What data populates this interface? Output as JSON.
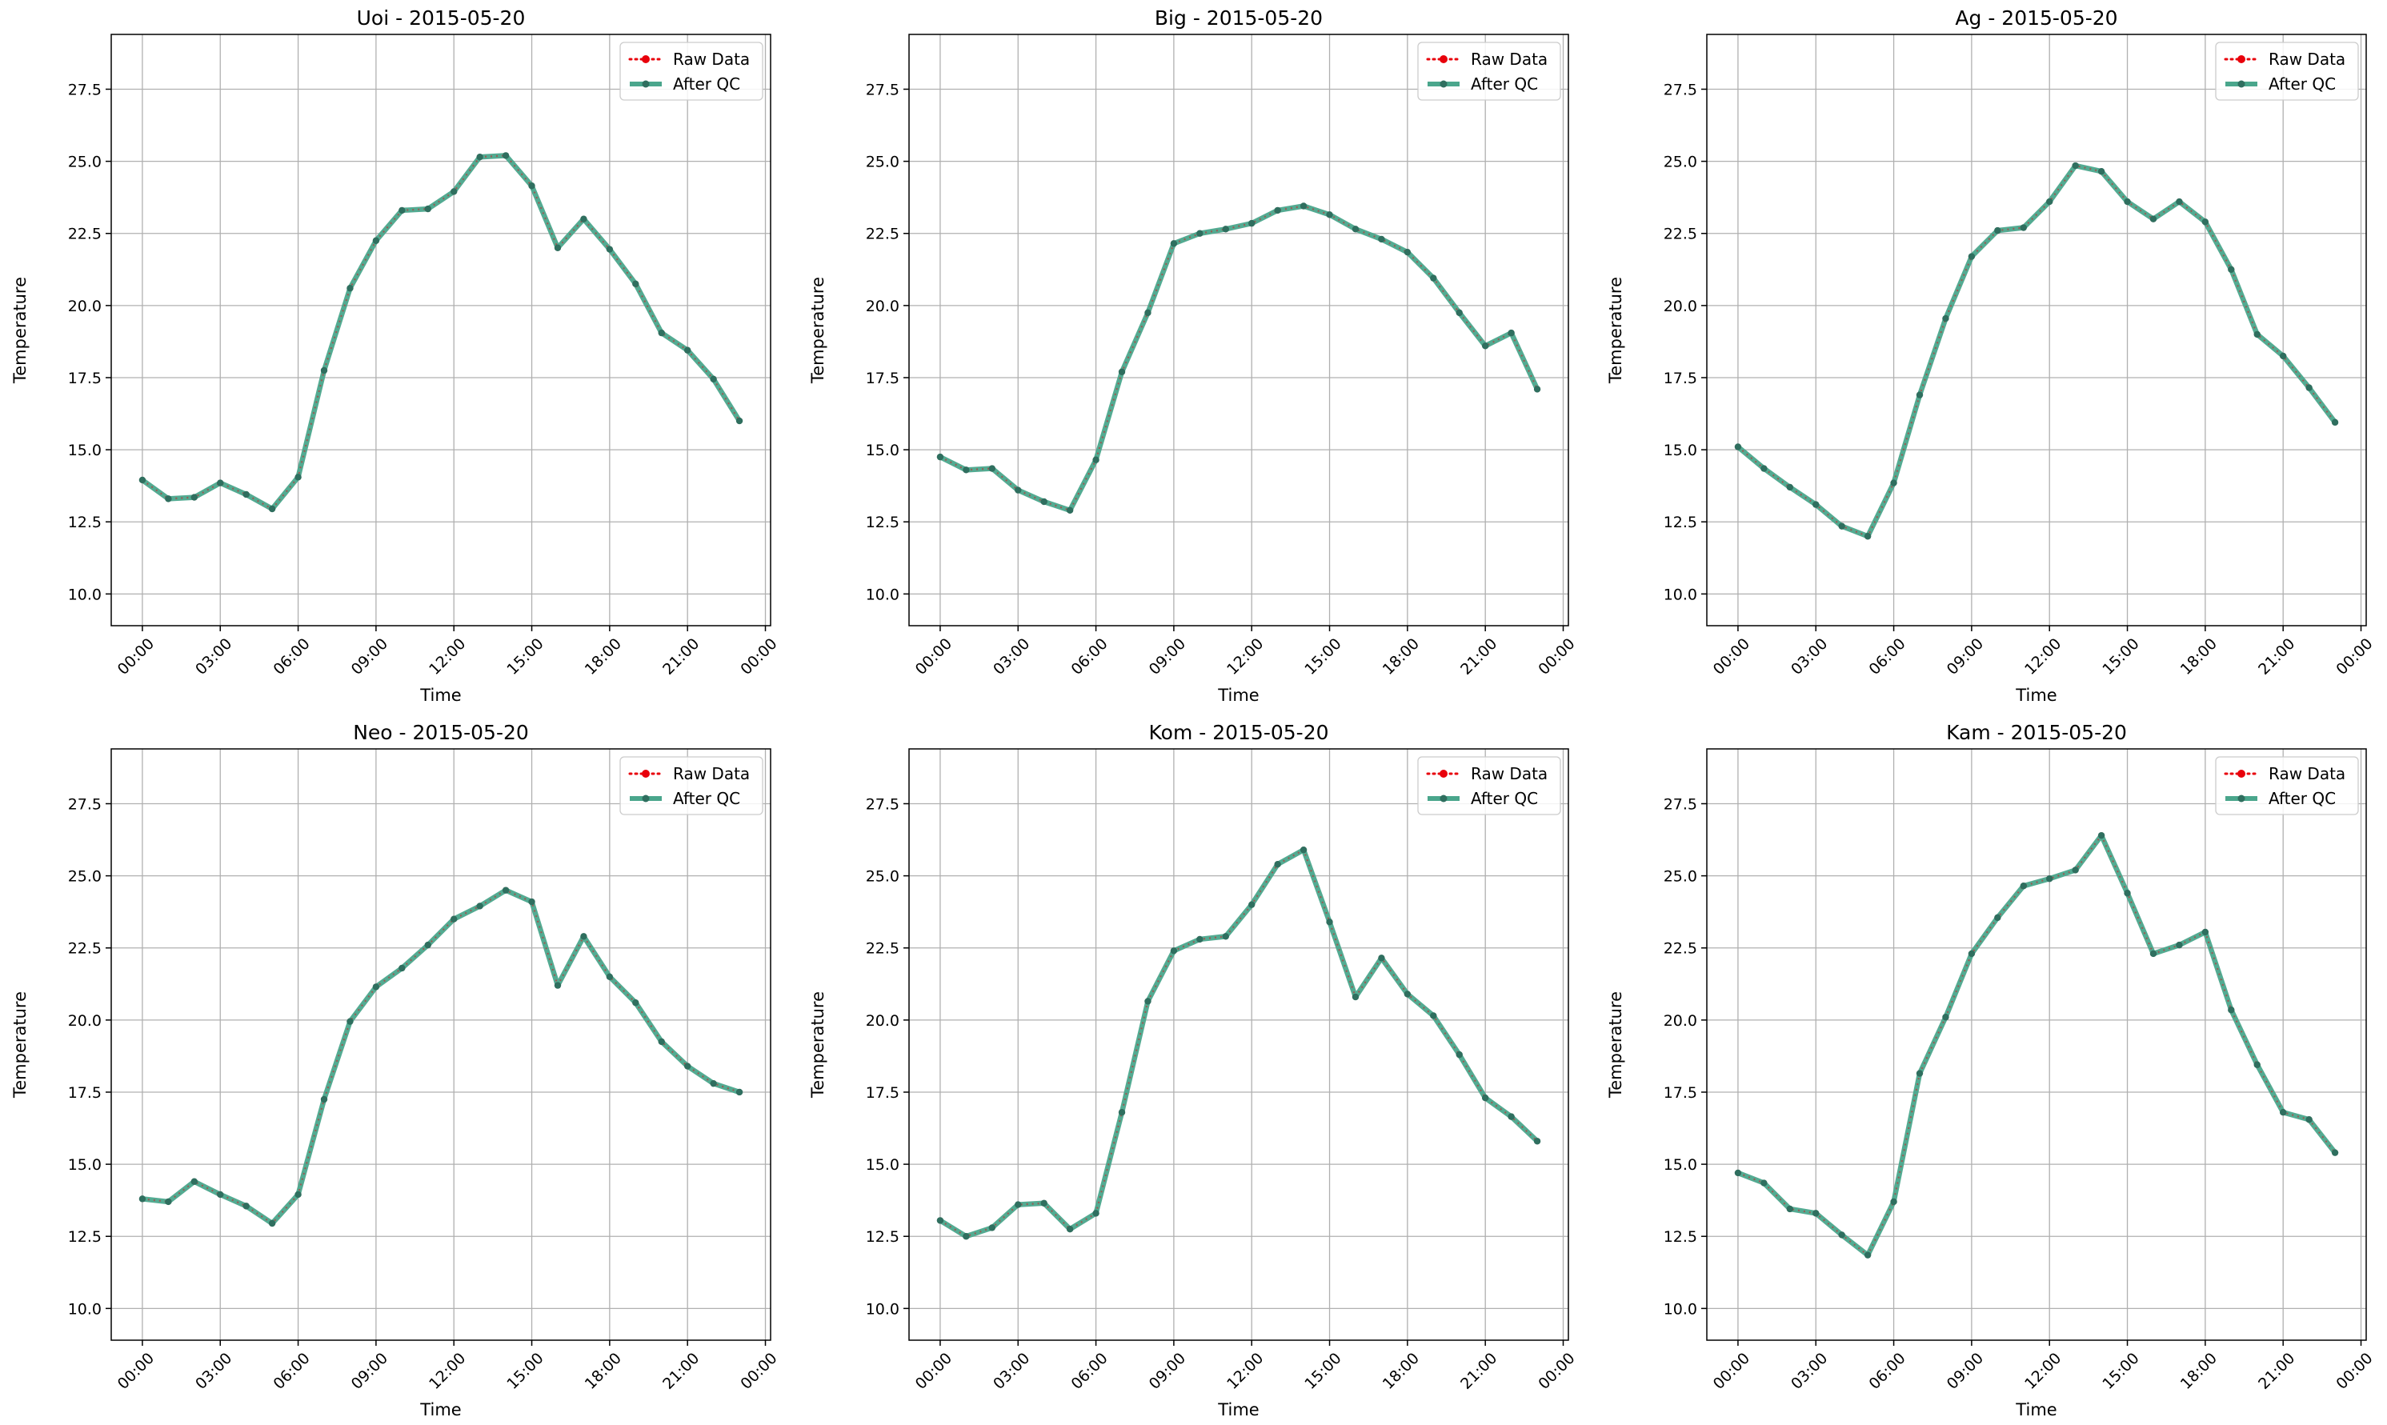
{
  "chart_data": [
    {
      "type": "line",
      "title": "Uoi - 2015-05-20",
      "xlabel": "Time",
      "ylabel": "Temperature",
      "x_ticks": [
        "00:00",
        "03:00",
        "06:00",
        "09:00",
        "12:00",
        "15:00",
        "18:00",
        "21:00",
        "00:00"
      ],
      "y_ticks": [
        "10.0",
        "12.5",
        "15.0",
        "17.5",
        "20.0",
        "22.5",
        "25.0",
        "27.5"
      ],
      "ylim": [
        8.9,
        29.4
      ],
      "xlim_hours": [
        -1.2,
        24.2
      ],
      "grid": true,
      "legend": {
        "position": "top-right",
        "entries": [
          "Raw Data",
          "After QC"
        ]
      },
      "x_hours": [
        0,
        1,
        2,
        3,
        4,
        5,
        6,
        7,
        8,
        9,
        10,
        11,
        12,
        13,
        14,
        15,
        16,
        17,
        18,
        19,
        20,
        21,
        22,
        23
      ],
      "series": [
        {
          "name": "Raw Data",
          "values": [
            13.95,
            13.3,
            13.35,
            13.85,
            13.45,
            12.95,
            14.05,
            17.75,
            20.6,
            22.25,
            23.3,
            23.35,
            23.95,
            25.15,
            25.2,
            24.15,
            22.0,
            23.0,
            21.95,
            20.75,
            19.05,
            18.45,
            17.45,
            16.0
          ]
        },
        {
          "name": "After QC",
          "values": [
            13.95,
            13.3,
            13.35,
            13.85,
            13.45,
            12.95,
            14.05,
            17.75,
            20.6,
            22.25,
            23.3,
            23.35,
            23.95,
            25.15,
            25.2,
            24.15,
            22.0,
            23.0,
            21.95,
            20.75,
            19.05,
            18.45,
            17.45,
            16.0
          ]
        }
      ]
    },
    {
      "type": "line",
      "title": "Big - 2015-05-20",
      "xlabel": "Time",
      "ylabel": "Temperature",
      "x_ticks": [
        "00:00",
        "03:00",
        "06:00",
        "09:00",
        "12:00",
        "15:00",
        "18:00",
        "21:00",
        "00:00"
      ],
      "y_ticks": [
        "10.0",
        "12.5",
        "15.0",
        "17.5",
        "20.0",
        "22.5",
        "25.0",
        "27.5"
      ],
      "ylim": [
        8.9,
        29.4
      ],
      "xlim_hours": [
        -1.2,
        24.2
      ],
      "grid": true,
      "legend": {
        "position": "top-right",
        "entries": [
          "Raw Data",
          "After QC"
        ]
      },
      "x_hours": [
        0,
        1,
        2,
        3,
        4,
        5,
        6,
        7,
        8,
        9,
        10,
        11,
        12,
        13,
        14,
        15,
        16,
        17,
        18,
        19,
        20,
        21,
        22,
        23
      ],
      "series": [
        {
          "name": "Raw Data",
          "values": [
            14.75,
            14.3,
            14.35,
            13.6,
            13.2,
            12.9,
            14.65,
            17.7,
            19.75,
            22.15,
            22.5,
            22.65,
            22.85,
            23.3,
            23.45,
            23.15,
            22.65,
            22.3,
            21.85,
            20.95,
            19.75,
            18.6,
            19.05,
            17.1
          ]
        },
        {
          "name": "After QC",
          "values": [
            14.75,
            14.3,
            14.35,
            13.6,
            13.2,
            12.9,
            14.65,
            17.7,
            19.75,
            22.15,
            22.5,
            22.65,
            22.85,
            23.3,
            23.45,
            23.15,
            22.65,
            22.3,
            21.85,
            20.95,
            19.75,
            18.6,
            19.05,
            17.1
          ]
        }
      ]
    },
    {
      "type": "line",
      "title": "Ag - 2015-05-20",
      "xlabel": "Time",
      "ylabel": "Temperature",
      "x_ticks": [
        "00:00",
        "03:00",
        "06:00",
        "09:00",
        "12:00",
        "15:00",
        "18:00",
        "21:00",
        "00:00"
      ],
      "y_ticks": [
        "10.0",
        "12.5",
        "15.0",
        "17.5",
        "20.0",
        "22.5",
        "25.0",
        "27.5"
      ],
      "ylim": [
        8.9,
        29.4
      ],
      "xlim_hours": [
        -1.2,
        24.2
      ],
      "grid": true,
      "legend": {
        "position": "top-right",
        "entries": [
          "Raw Data",
          "After QC"
        ]
      },
      "x_hours": [
        0,
        1,
        2,
        3,
        4,
        5,
        6,
        7,
        8,
        9,
        10,
        11,
        12,
        13,
        14,
        15,
        16,
        17,
        18,
        19,
        20,
        21,
        22,
        23
      ],
      "series": [
        {
          "name": "Raw Data",
          "values": [
            15.1,
            14.35,
            13.7,
            13.1,
            12.35,
            12.0,
            13.85,
            16.9,
            19.55,
            21.7,
            22.6,
            22.7,
            23.6,
            24.85,
            24.65,
            23.6,
            23.0,
            23.6,
            22.9,
            21.25,
            19.0,
            18.25,
            17.15,
            15.95
          ]
        },
        {
          "name": "After QC",
          "values": [
            15.1,
            14.35,
            13.7,
            13.1,
            12.35,
            12.0,
            13.85,
            16.9,
            19.55,
            21.7,
            22.6,
            22.7,
            23.6,
            24.85,
            24.65,
            23.6,
            23.0,
            23.6,
            22.9,
            21.25,
            19.0,
            18.25,
            17.15,
            15.95
          ]
        }
      ]
    },
    {
      "type": "line",
      "title": "Neo - 2015-05-20",
      "xlabel": "Time",
      "ylabel": "Temperature",
      "x_ticks": [
        "00:00",
        "03:00",
        "06:00",
        "09:00",
        "12:00",
        "15:00",
        "18:00",
        "21:00",
        "00:00"
      ],
      "y_ticks": [
        "10.0",
        "12.5",
        "15.0",
        "17.5",
        "20.0",
        "22.5",
        "25.0",
        "27.5"
      ],
      "ylim": [
        8.9,
        29.4
      ],
      "xlim_hours": [
        -1.2,
        24.2
      ],
      "grid": true,
      "legend": {
        "position": "top-right",
        "entries": [
          "Raw Data",
          "After QC"
        ]
      },
      "x_hours": [
        0,
        1,
        2,
        3,
        4,
        5,
        6,
        7,
        8,
        9,
        10,
        11,
        12,
        13,
        14,
        15,
        16,
        17,
        18,
        19,
        20,
        21,
        22,
        23
      ],
      "series": [
        {
          "name": "Raw Data",
          "values": [
            13.8,
            13.7,
            14.4,
            13.95,
            13.55,
            12.95,
            13.95,
            17.25,
            19.95,
            21.15,
            21.8,
            22.6,
            23.5,
            23.95,
            24.5,
            24.1,
            21.2,
            22.9,
            21.5,
            20.6,
            19.25,
            18.4,
            17.8,
            17.5
          ]
        },
        {
          "name": "After QC",
          "values": [
            13.8,
            13.7,
            14.4,
            13.95,
            13.55,
            12.95,
            13.95,
            17.25,
            19.95,
            21.15,
            21.8,
            22.6,
            23.5,
            23.95,
            24.5,
            24.1,
            21.2,
            22.9,
            21.5,
            20.6,
            19.25,
            18.4,
            17.8,
            17.5
          ]
        }
      ]
    },
    {
      "type": "line",
      "title": "Kom - 2015-05-20",
      "xlabel": "Time",
      "ylabel": "Temperature",
      "x_ticks": [
        "00:00",
        "03:00",
        "06:00",
        "09:00",
        "12:00",
        "15:00",
        "18:00",
        "21:00",
        "00:00"
      ],
      "y_ticks": [
        "10.0",
        "12.5",
        "15.0",
        "17.5",
        "20.0",
        "22.5",
        "25.0",
        "27.5"
      ],
      "ylim": [
        8.9,
        29.4
      ],
      "xlim_hours": [
        -1.2,
        24.2
      ],
      "grid": true,
      "legend": {
        "position": "top-right",
        "entries": [
          "Raw Data",
          "After QC"
        ]
      },
      "x_hours": [
        0,
        1,
        2,
        3,
        4,
        5,
        6,
        7,
        8,
        9,
        10,
        11,
        12,
        13,
        14,
        15,
        16,
        17,
        18,
        19,
        20,
        21,
        22,
        23
      ],
      "series": [
        {
          "name": "Raw Data",
          "values": [
            13.05,
            12.5,
            12.8,
            13.6,
            13.65,
            12.75,
            13.3,
            16.8,
            20.65,
            22.4,
            22.8,
            22.9,
            24.0,
            25.4,
            25.9,
            23.4,
            20.8,
            22.15,
            20.9,
            20.15,
            18.8,
            17.3,
            16.65,
            15.8
          ]
        },
        {
          "name": "After QC",
          "values": [
            13.05,
            12.5,
            12.8,
            13.6,
            13.65,
            12.75,
            13.3,
            16.8,
            20.65,
            22.4,
            22.8,
            22.9,
            24.0,
            25.4,
            25.9,
            23.4,
            20.8,
            22.15,
            20.9,
            20.15,
            18.8,
            17.3,
            16.65,
            15.8
          ]
        }
      ]
    },
    {
      "type": "line",
      "title": "Kam - 2015-05-20",
      "xlabel": "Time",
      "ylabel": "Temperature",
      "x_ticks": [
        "00:00",
        "03:00",
        "06:00",
        "09:00",
        "12:00",
        "15:00",
        "18:00",
        "21:00",
        "00:00"
      ],
      "y_ticks": [
        "10.0",
        "12.5",
        "15.0",
        "17.5",
        "20.0",
        "22.5",
        "25.0",
        "27.5"
      ],
      "ylim": [
        8.9,
        29.4
      ],
      "xlim_hours": [
        -1.2,
        24.2
      ],
      "grid": true,
      "legend": {
        "position": "top-right",
        "entries": [
          "Raw Data",
          "After QC"
        ]
      },
      "x_hours": [
        0,
        1,
        2,
        3,
        4,
        5,
        6,
        7,
        8,
        9,
        10,
        11,
        12,
        13,
        14,
        15,
        16,
        17,
        18,
        19,
        20,
        21,
        22,
        23
      ],
      "series": [
        {
          "name": "Raw Data",
          "values": [
            14.7,
            14.35,
            13.45,
            13.3,
            12.55,
            11.85,
            13.7,
            18.15,
            20.1,
            22.3,
            23.55,
            24.65,
            24.9,
            25.2,
            26.4,
            24.4,
            22.3,
            22.6,
            23.05,
            20.35,
            18.45,
            16.8,
            16.55,
            15.4
          ]
        },
        {
          "name": "After QC",
          "values": [
            14.7,
            14.35,
            13.45,
            13.3,
            12.55,
            11.85,
            13.7,
            18.15,
            20.1,
            22.3,
            23.55,
            24.65,
            24.9,
            25.2,
            26.4,
            24.4,
            22.3,
            22.6,
            23.05,
            20.35,
            18.45,
            16.8,
            16.55,
            15.4
          ]
        }
      ]
    }
  ],
  "colors": {
    "raw": "#e8000b",
    "qc_line": "#4aa68c",
    "qc_marker": "#2f6f5f",
    "grid": "#b0b0b0",
    "axis": "#000000"
  }
}
